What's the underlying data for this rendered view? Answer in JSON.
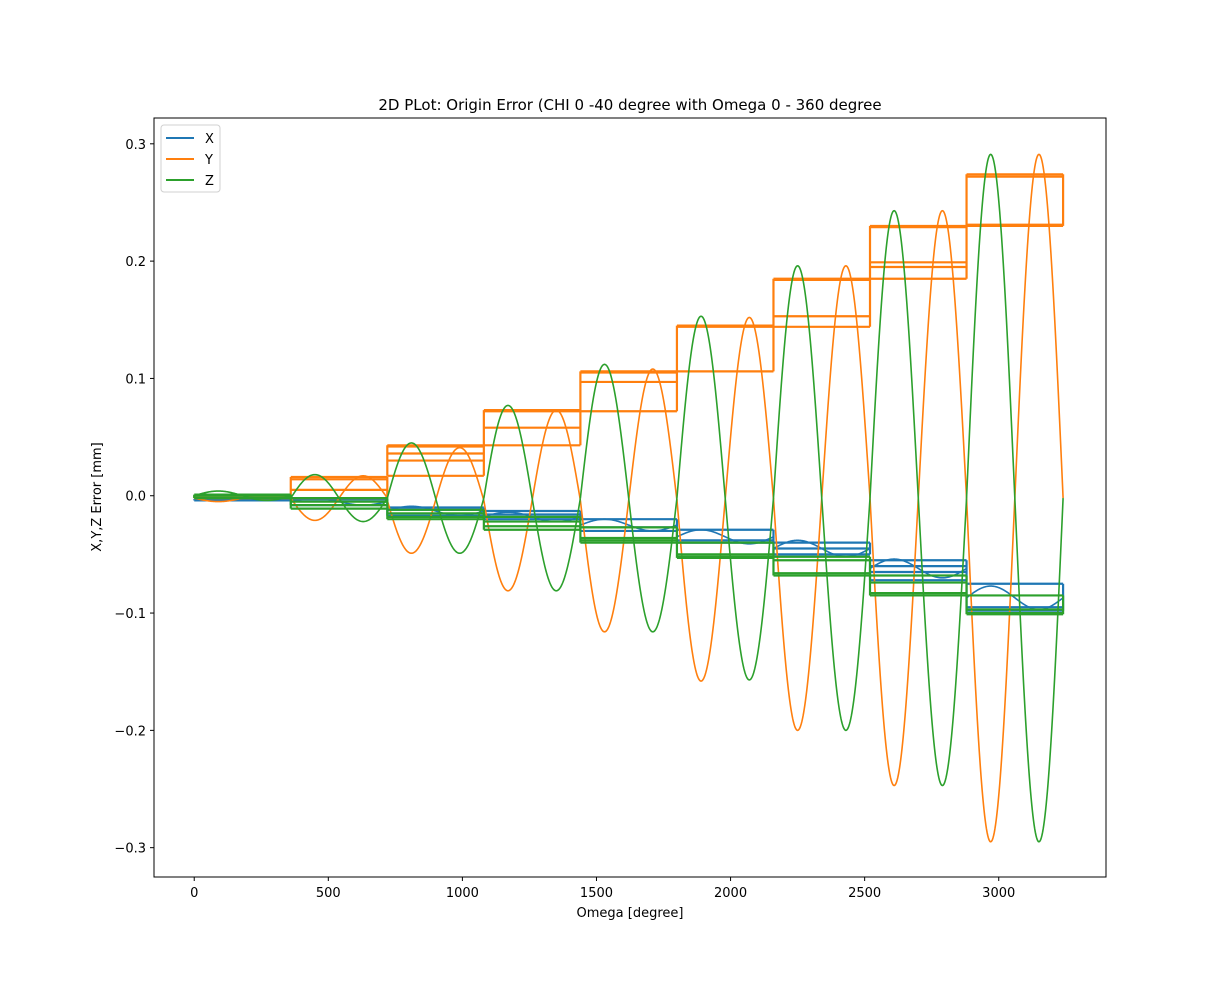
{
  "chart_data": {
    "type": "line",
    "title": "2D PLot: Origin Error (CHI 0 -40 degree with Omega 0 - 360 degree",
    "xlabel": "Omega [degree]",
    "ylabel": "X,Y,Z Error [mm]",
    "xlim": [
      -150,
      3400
    ],
    "ylim": [
      -0.325,
      0.322
    ],
    "x_ticks": [
      0,
      500,
      1000,
      1500,
      2000,
      2500,
      3000
    ],
    "x_tick_labels": [
      "0",
      "500",
      "1000",
      "1500",
      "2000",
      "2500",
      "3000"
    ],
    "y_ticks": [
      0.3,
      0.2,
      0.1,
      0.0,
      -0.1,
      -0.2,
      -0.3
    ],
    "y_tick_labels": [
      "0.3",
      "0.2",
      "0.1",
      "0.0",
      "−0.1",
      "−0.2",
      "−0.3"
    ],
    "grid": false,
    "legend_position": "top-left",
    "segment_width_degrees": 360,
    "segments": [
      {
        "x_start": 0,
        "x_end": 360,
        "x_mean": -0.003,
        "x_amplitude": 0.0,
        "y_mean": -0.002,
        "y_amplitude": 0.003,
        "z_mean": 0.0,
        "z_amplitude": 0.004
      },
      {
        "x_start": 360,
        "x_end": 720,
        "x_mean": -0.005,
        "x_amplitude": 0.003,
        "y_mean": -0.002,
        "y_amplitude": 0.019,
        "z_mean": -0.002,
        "z_amplitude": 0.02
      },
      {
        "x_start": 720,
        "x_end": 1080,
        "x_mean": -0.013,
        "x_amplitude": 0.004,
        "y_mean": -0.004,
        "y_amplitude": 0.045,
        "z_mean": -0.002,
        "z_amplitude": 0.047
      },
      {
        "x_start": 1080,
        "x_end": 1440,
        "x_mean": -0.018,
        "x_amplitude": 0.004,
        "y_mean": -0.004,
        "y_amplitude": 0.077,
        "z_mean": -0.002,
        "z_amplitude": 0.079
      },
      {
        "x_start": 1440,
        "x_end": 1800,
        "x_mean": -0.025,
        "x_amplitude": 0.005,
        "y_mean": -0.004,
        "y_amplitude": 0.112,
        "z_mean": -0.002,
        "z_amplitude": 0.114
      },
      {
        "x_start": 1800,
        "x_end": 2160,
        "x_mean": -0.035,
        "x_amplitude": 0.006,
        "y_mean": -0.003,
        "y_amplitude": 0.155,
        "z_mean": -0.002,
        "z_amplitude": 0.155
      },
      {
        "x_start": 2160,
        "x_end": 2520,
        "x_mean": -0.045,
        "x_amplitude": 0.007,
        "y_mean": -0.002,
        "y_amplitude": 0.198,
        "z_mean": -0.002,
        "z_amplitude": 0.198
      },
      {
        "x_start": 2520,
        "x_end": 2880,
        "x_mean": -0.062,
        "x_amplitude": 0.008,
        "y_mean": -0.002,
        "y_amplitude": 0.245,
        "z_mean": -0.002,
        "z_amplitude": 0.245
      },
      {
        "x_start": 2880,
        "x_end": 3240,
        "x_mean": -0.087,
        "x_amplitude": 0.01,
        "y_mean": -0.002,
        "y_amplitude": 0.293,
        "z_mean": -0.002,
        "z_amplitude": 0.293
      }
    ],
    "series": [
      {
        "name": "X",
        "color": "#1f77b4",
        "step_levels": [
          [
            -0.003,
            -0.004
          ],
          [
            -0.003,
            -0.008
          ],
          [
            -0.01,
            -0.012,
            -0.017
          ],
          [
            -0.013,
            -0.016,
            -0.02
          ],
          [
            -0.02,
            -0.027,
            -0.03
          ],
          [
            -0.029,
            -0.038,
            -0.04
          ],
          [
            -0.04,
            -0.045,
            -0.05
          ],
          [
            -0.055,
            -0.06,
            -0.065,
            -0.072
          ],
          [
            -0.075,
            -0.095,
            -0.098
          ]
        ]
      },
      {
        "name": "Y",
        "color": "#ff7f0e",
        "step_levels": [
          [
            0.0,
            -0.002
          ],
          [
            0.016,
            0.014,
            0.005,
            -0.002
          ],
          [
            0.043,
            0.042,
            0.036,
            0.03,
            0.017
          ],
          [
            0.073,
            0.072,
            0.058,
            0.043
          ],
          [
            0.106,
            0.105,
            0.097,
            0.072
          ],
          [
            0.145,
            0.144,
            0.106
          ],
          [
            0.185,
            0.184,
            0.153,
            0.144
          ],
          [
            0.23,
            0.229,
            0.199,
            0.195,
            0.185
          ],
          [
            0.274,
            0.272,
            0.231,
            0.23
          ]
        ]
      },
      {
        "name": "Z",
        "color": "#2ca02c",
        "step_levels": [
          [
            0.001,
            0.0,
            -0.002
          ],
          [
            -0.002,
            -0.005,
            -0.008,
            -0.011
          ],
          [
            -0.012,
            -0.015,
            -0.018,
            -0.02
          ],
          [
            -0.018,
            -0.022,
            -0.026,
            -0.029
          ],
          [
            -0.027,
            -0.036,
            -0.038,
            -0.04
          ],
          [
            -0.04,
            -0.05,
            -0.052,
            -0.053
          ],
          [
            -0.052,
            -0.055,
            -0.066,
            -0.068
          ],
          [
            -0.068,
            -0.074,
            -0.083,
            -0.085
          ],
          [
            -0.085,
            -0.097,
            -0.1,
            -0.101
          ]
        ]
      }
    ]
  }
}
